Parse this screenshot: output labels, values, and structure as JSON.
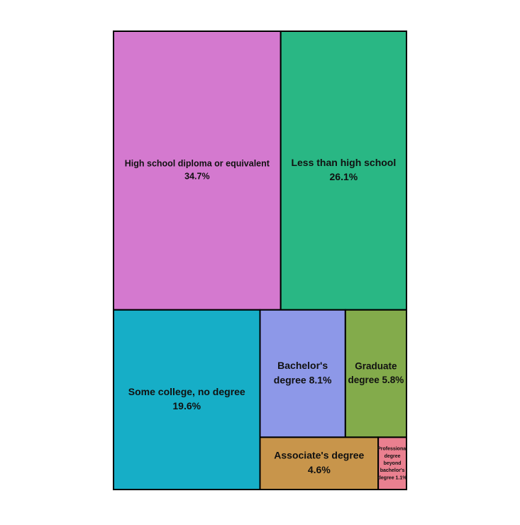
{
  "chart_data": {
    "type": "treemap",
    "unit": "%",
    "items": [
      {
        "name": "High school diploma or equivalent",
        "value": 34.7,
        "label_lines": [
          "High school diploma or equivalent",
          "34.7%"
        ],
        "color": "#d479cf"
      },
      {
        "name": "Less than high school",
        "value": 26.1,
        "label_lines": [
          "Less than high school",
          "26.1%"
        ],
        "color": "#29b784"
      },
      {
        "name": "Some college, no degree",
        "value": 19.6,
        "label_lines": [
          "Some college, no degree",
          "19.6%"
        ],
        "color": "#16aec7"
      },
      {
        "name": "Bachelor's degree",
        "value": 8.1,
        "label_lines": [
          "Bachelor's",
          "degree 8.1%"
        ],
        "color": "#8d98e8"
      },
      {
        "name": "Graduate degree",
        "value": 5.8,
        "label_lines": [
          "Graduate",
          "degree 5.8%"
        ],
        "color": "#83ab4b"
      },
      {
        "name": "Associate's degree",
        "value": 4.6,
        "label_lines": [
          "Associate's degree",
          "4.6%"
        ],
        "color": "#c8954b"
      },
      {
        "name": "Professional degree beyond bachelor's degree",
        "value": 1.1,
        "label_lines": [
          "Professional",
          "degree",
          "beyond",
          "bachelor's",
          "degree 1.1%"
        ],
        "color": "#ea8090"
      }
    ]
  }
}
